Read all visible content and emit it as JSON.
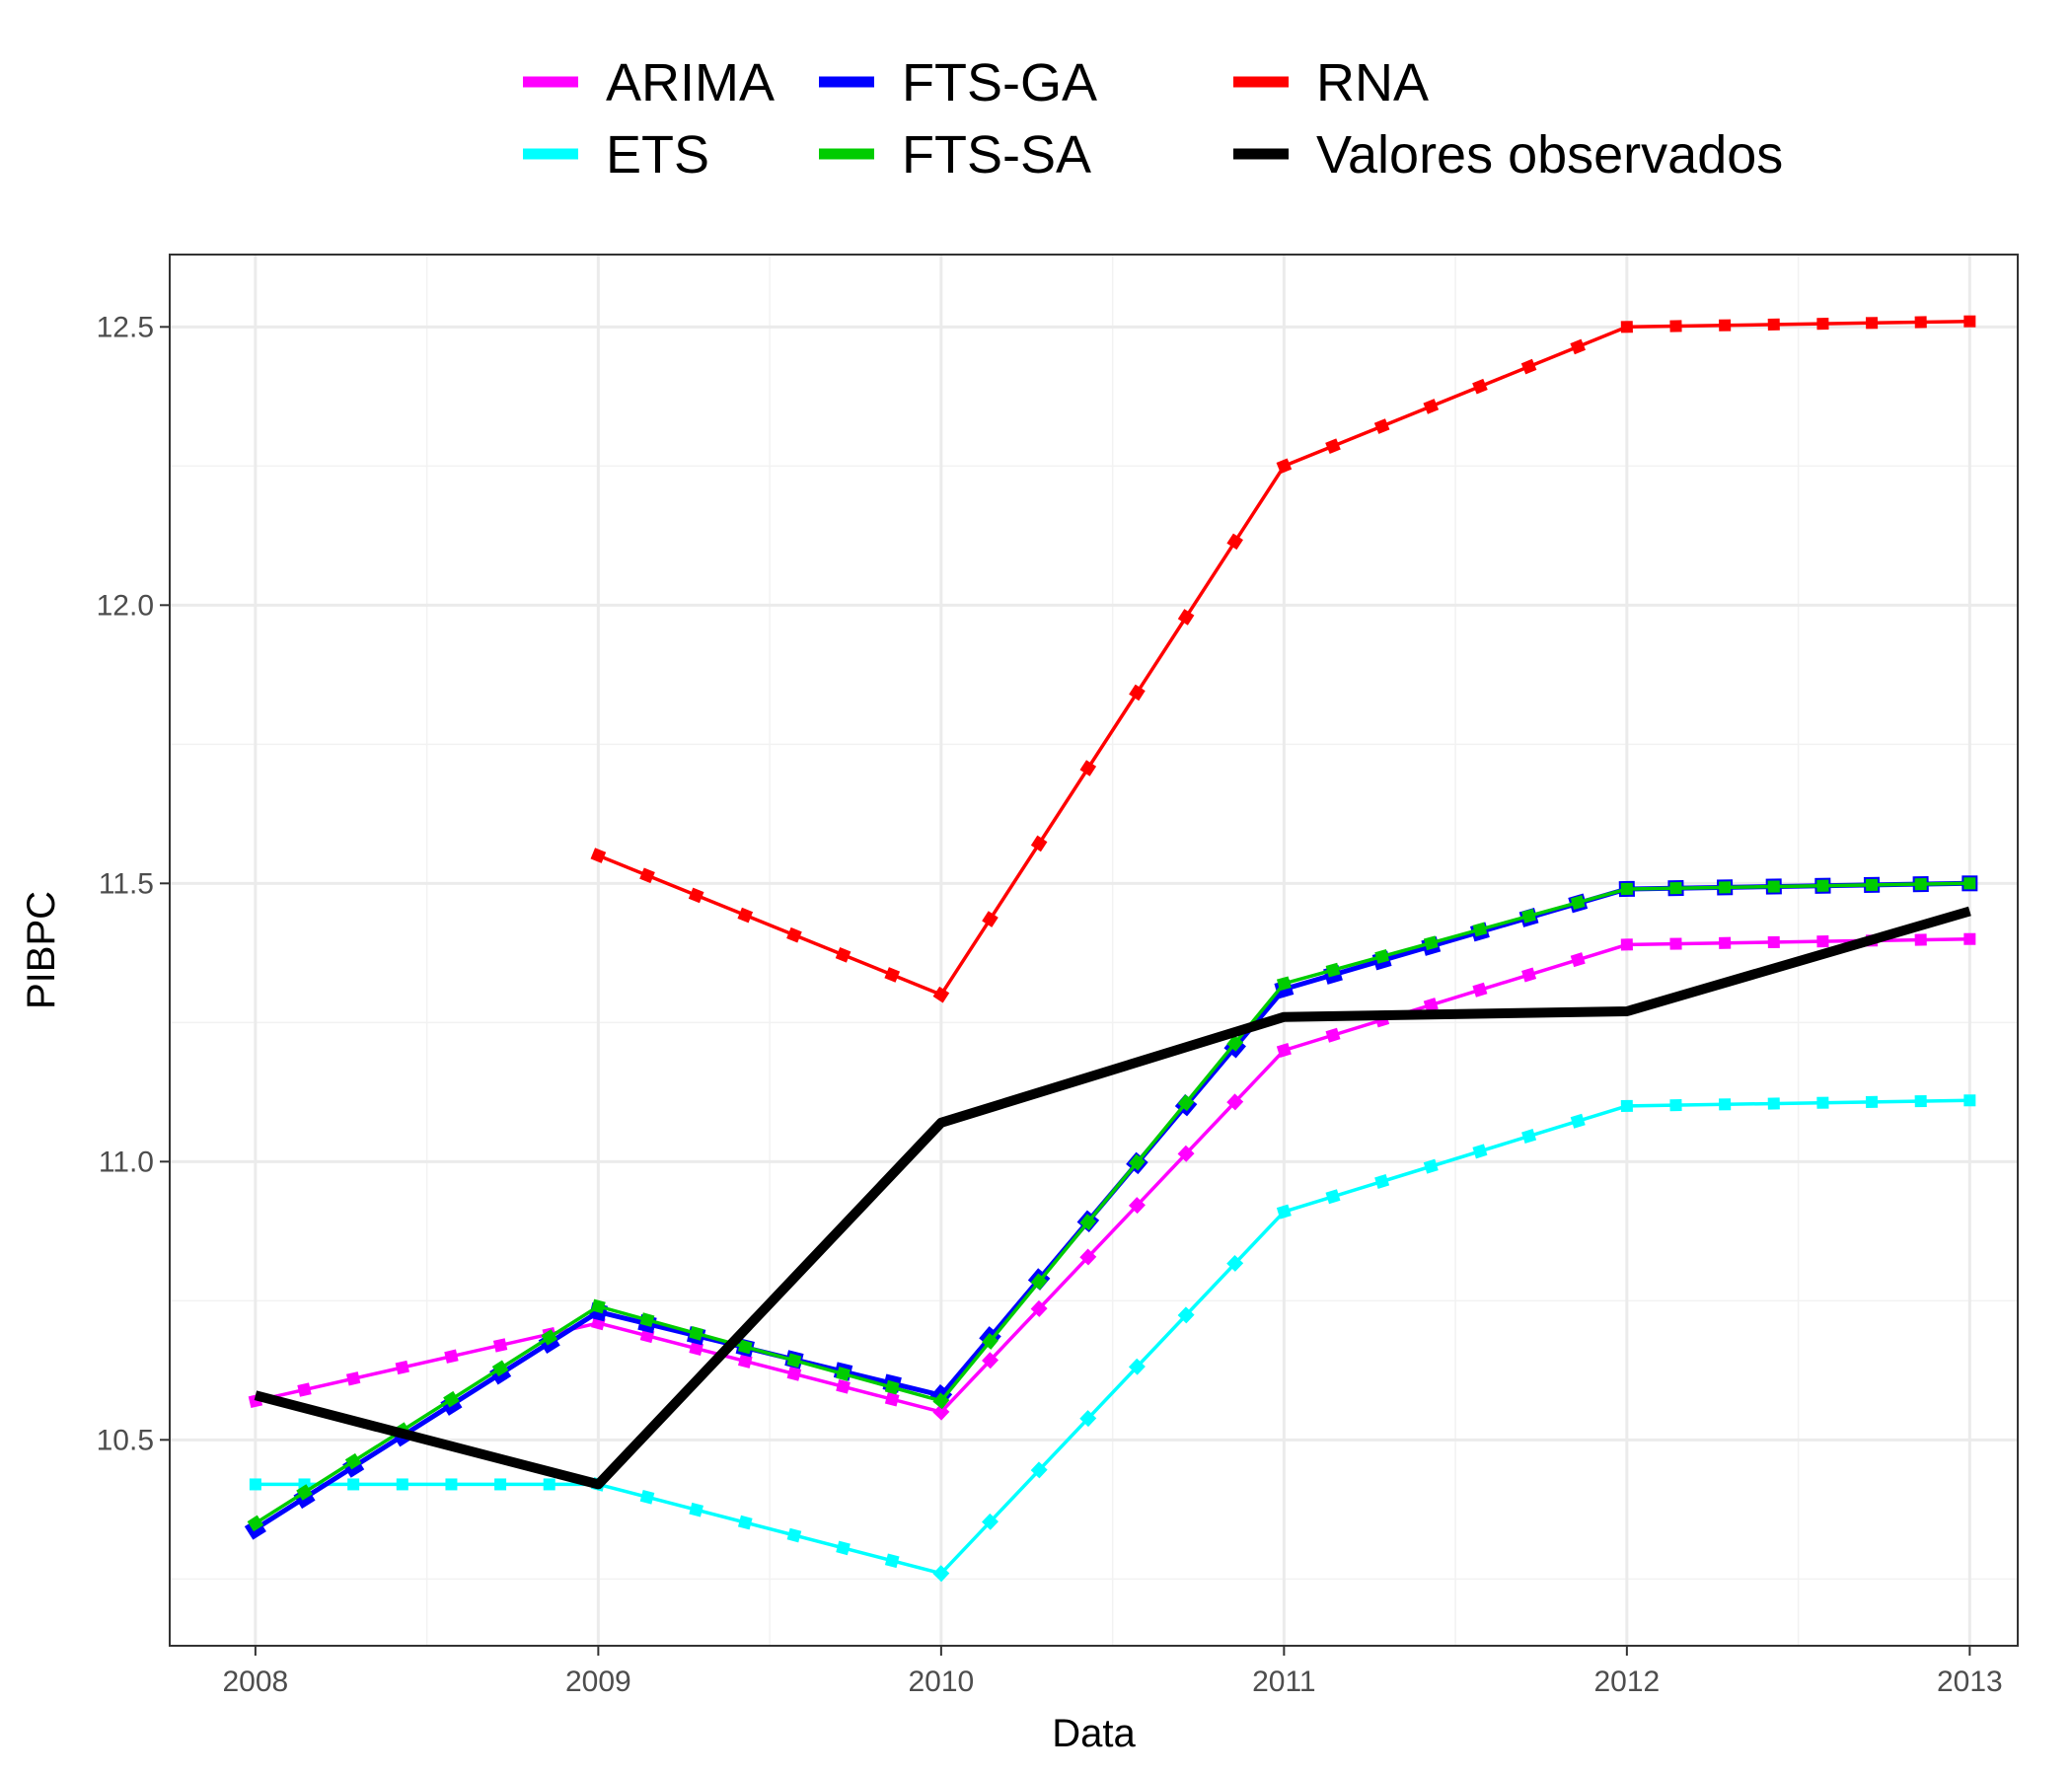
{
  "chart_data": {
    "type": "line",
    "title": "",
    "xlabel": "Data",
    "ylabel": "PIBPC",
    "xlim": [
      2007.75,
      2013.14
    ],
    "ylim": [
      10.13,
      12.63
    ],
    "grid": true,
    "legend_position": "top",
    "x_ticks": [
      2008,
      2009,
      2010,
      2011,
      2012,
      2013
    ],
    "x_tick_labels": [
      "2008",
      "2009",
      "2010",
      "2011",
      "2012",
      "2013"
    ],
    "y_ticks": [
      10.5,
      11.0,
      11.5,
      12.0,
      12.5
    ],
    "y_tick_labels": [
      "10.5",
      "11.0",
      "11.5",
      "12.0",
      "12.5"
    ],
    "series": [
      {
        "name": "ARIMA",
        "color": "#ff00ff",
        "style": "dashed-markers",
        "x": [
          2008.0,
          2009.0,
          2010.0,
          2011.0,
          2012.0,
          2013.0
        ],
        "y": [
          10.57,
          10.71,
          10.55,
          11.2,
          11.39,
          11.4
        ]
      },
      {
        "name": "ETS",
        "color": "#00ffff",
        "style": "dashed-markers",
        "x": [
          2008.0,
          2009.0,
          2010.0,
          2011.0,
          2012.0,
          2013.0
        ],
        "y": [
          10.42,
          10.42,
          10.26,
          10.91,
          11.1,
          11.11
        ]
      },
      {
        "name": "FTS-GA",
        "color": "#0000ff",
        "style": "dashed-markers",
        "x": [
          2008.0,
          2009.0,
          2010.0,
          2011.0,
          2012.0,
          2013.0
        ],
        "y": [
          10.34,
          10.73,
          10.58,
          11.31,
          11.49,
          11.5
        ]
      },
      {
        "name": "FTS-SA",
        "color": "#00cc00",
        "style": "dashed-markers",
        "x": [
          2008.0,
          2009.0,
          2010.0,
          2011.0,
          2012.0,
          2013.0
        ],
        "y": [
          10.35,
          10.74,
          10.57,
          11.32,
          11.49,
          11.5
        ]
      },
      {
        "name": "RNA",
        "color": "#ff0000",
        "style": "dashed-markers",
        "x": [
          2009.0,
          2010.0,
          2011.0,
          2012.0,
          2013.0
        ],
        "y": [
          11.55,
          11.3,
          12.25,
          12.5,
          12.51
        ]
      },
      {
        "name": "Valores observados",
        "color": "#000000",
        "style": "solid-thick",
        "x": [
          2008.0,
          2009.0,
          2010.0,
          2011.0,
          2012.0,
          2013.0
        ],
        "y": [
          10.58,
          10.42,
          11.07,
          11.26,
          11.27,
          11.45
        ]
      }
    ]
  }
}
